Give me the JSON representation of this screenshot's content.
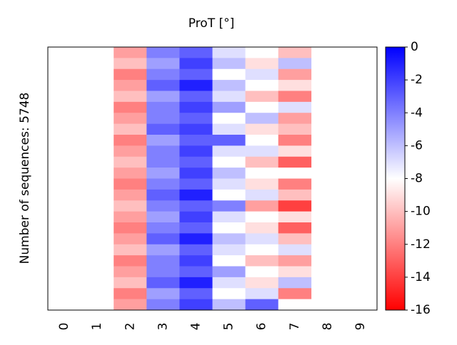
{
  "chart_data": {
    "type": "heatmap",
    "title": "ProT [°]",
    "ylabel": "Number of sequences: 5748",
    "x": [
      0,
      1,
      2,
      3,
      4,
      5,
      6,
      7,
      8,
      9
    ],
    "z": [
      [
        null,
        null,
        -11,
        -4,
        -3,
        -7,
        -8,
        -10,
        null,
        null
      ],
      [
        null,
        null,
        -10,
        -5,
        -2,
        -6,
        -9,
        -6,
        null,
        null
      ],
      [
        null,
        null,
        -12,
        -4,
        -3,
        -8,
        -7,
        -11,
        null,
        null
      ],
      [
        null,
        null,
        -11,
        -3,
        -1,
        -6,
        -8,
        -9,
        null,
        null
      ],
      [
        null,
        null,
        -10,
        -5,
        -3,
        -7,
        -10,
        -12,
        null,
        null
      ],
      [
        null,
        null,
        -12,
        -4,
        -2,
        -5,
        -8,
        -7,
        null,
        null
      ],
      [
        null,
        null,
        -11,
        -4,
        -3,
        -8,
        -6,
        -11,
        null,
        null
      ],
      [
        null,
        null,
        -10,
        -3,
        -2,
        -7,
        -9,
        -10,
        null,
        null
      ],
      [
        null,
        null,
        -12,
        -5,
        -3,
        -3,
        -8,
        -12,
        null,
        null
      ],
      [
        null,
        null,
        -11,
        -4,
        -2,
        -7,
        -7,
        -9,
        null,
        null
      ],
      [
        null,
        null,
        -10,
        -4,
        -3,
        -8,
        -10,
        -13,
        null,
        null
      ],
      [
        null,
        null,
        -11,
        -5,
        -2,
        -6,
        -8,
        -8,
        null,
        null
      ],
      [
        null,
        null,
        -12,
        -4,
        -3,
        -7,
        -9,
        -12,
        null,
        null
      ],
      [
        null,
        null,
        -11,
        -3,
        -1,
        -8,
        -7,
        -10,
        null,
        null
      ],
      [
        null,
        null,
        -10,
        -4,
        -3,
        -4,
        -11,
        -14,
        null,
        null
      ],
      [
        null,
        null,
        -11,
        -5,
        -2,
        -7,
        -8,
        -9,
        null,
        null
      ],
      [
        null,
        null,
        -12,
        -4,
        -3,
        -8,
        -9,
        -13,
        null,
        null
      ],
      [
        null,
        null,
        -11,
        -3,
        -1,
        -6,
        -7,
        -10,
        null,
        null
      ],
      [
        null,
        null,
        -10,
        -5,
        -3,
        -7,
        -8,
        -7,
        null,
        null
      ],
      [
        null,
        null,
        -12,
        -4,
        -2,
        -8,
        -10,
        -11,
        null,
        null
      ],
      [
        null,
        null,
        -11,
        -4,
        -3,
        -5,
        -8,
        -9,
        null,
        null
      ],
      [
        null,
        null,
        -10,
        -3,
        -1,
        -7,
        -9,
        -6,
        null,
        null
      ],
      [
        null,
        null,
        -12,
        -5,
        -3,
        -8,
        -7,
        -12,
        null,
        null
      ],
      [
        null,
        null,
        -11,
        -4,
        -2,
        -6,
        -3,
        -8,
        null,
        null
      ]
    ],
    "cmap": [
      "#ff0000",
      "#ffffff",
      "#0000ff"
    ],
    "clim": [
      -16,
      0
    ],
    "cticks": [
      0,
      -2,
      -4,
      -6,
      -8,
      -10,
      -12,
      -14,
      -16
    ]
  }
}
